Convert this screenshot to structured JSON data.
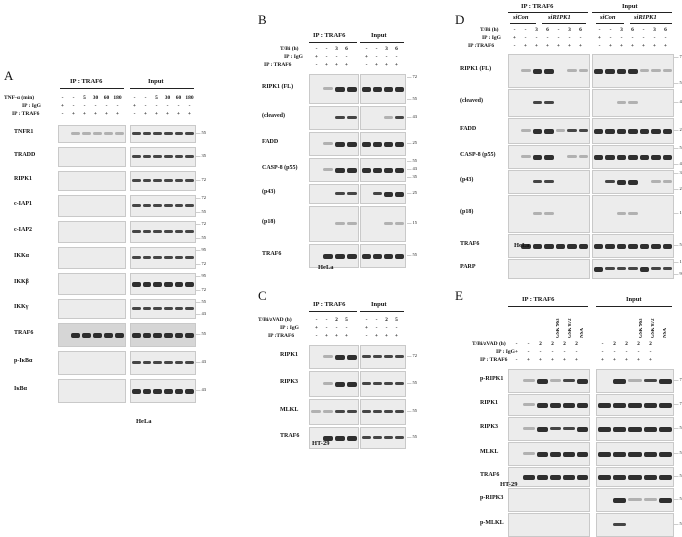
{
  "figure": {
    "panels": {
      "A": {
        "label": "A",
        "ip_title": "IP : TRAF6",
        "input_title": "Input",
        "treat_label": "TNF-α (min)",
        "ip_igg_label": "IP : IgG",
        "ip_traf6_label": "IP : TRAF6",
        "time_values": [
          "-",
          "-",
          "5",
          "30",
          "60",
          "180"
        ],
        "igg_values": [
          "+",
          "-",
          "-",
          "-",
          "-",
          "-"
        ],
        "traf6_values": [
          "-",
          "+",
          "+",
          "+",
          "+",
          "+"
        ],
        "rows": [
          {
            "label": "TNFR1",
            "mw": [
              "55"
            ]
          },
          {
            "label": "TRADD",
            "mw": [
              "35"
            ]
          },
          {
            "label": "RIPK1",
            "mw": [
              "72"
            ]
          },
          {
            "label": "c-IAP1",
            "mw": [
              "72",
              "55"
            ]
          },
          {
            "label": "c-IAP2",
            "mw": [
              "72",
              "55"
            ]
          },
          {
            "label": "IKKα",
            "mw": [
              "95",
              "72"
            ]
          },
          {
            "label": "IKKβ",
            "mw": [
              "95",
              "72"
            ]
          },
          {
            "label": "IKKγ",
            "mw": [
              "55",
              "43"
            ]
          },
          {
            "label": "TRAF6",
            "mw": [
              "55"
            ]
          },
          {
            "label": "p-IκBα",
            "mw": [
              "43"
            ]
          },
          {
            "label": "IκBα",
            "mw": [
              "43"
            ]
          }
        ],
        "cell_line": "HeLa"
      },
      "B": {
        "label": "B",
        "ip_title": "IP : TRAF6",
        "input_title": "Input",
        "treat_label": "T/Bi (h)",
        "ip_igg_label": "IP : IgG",
        "ip_traf6_label": "IP : TRAF6",
        "time_values": [
          "-",
          "-",
          "3",
          "6"
        ],
        "igg_values": [
          "+",
          "-",
          "-",
          "-"
        ],
        "traf6_values": [
          "-",
          "+",
          "+",
          "+"
        ],
        "rows": [
          {
            "label": "RIPK1 (FL)",
            "mw": [
              "72",
              "55"
            ]
          },
          {
            "label": "(cleaved)",
            "mw": [
              "43"
            ]
          },
          {
            "label": "FADD",
            "mw": [
              "25"
            ]
          },
          {
            "label": "CASP-8 (p55)",
            "mw": [
              "55",
              "43",
              "35"
            ]
          },
          {
            "label": "(p43)",
            "mw": [
              "25"
            ]
          },
          {
            "label": "(p18)",
            "mw": [
              "15"
            ]
          },
          {
            "label": "TRAF6",
            "mw": [
              "55"
            ]
          }
        ],
        "cell_line": "HeLa"
      },
      "C": {
        "label": "C",
        "ip_title": "IP : TRAF6",
        "input_title": "Input",
        "treat_label": "T/Bi/zVAD (h)",
        "ip_igg_label": "IP : IgG",
        "ip_traf6_label": "IP :TRAF6",
        "time_values": [
          "-",
          "-",
          "2",
          "5"
        ],
        "igg_values": [
          "+",
          "-",
          "-",
          "-"
        ],
        "traf6_values": [
          "-",
          "+",
          "+",
          "+"
        ],
        "rows": [
          {
            "label": "RIPK1",
            "mw": [
              "72"
            ]
          },
          {
            "label": "RIPK3",
            "mw": [
              "55"
            ]
          },
          {
            "label": "MLKL",
            "mw": [
              "55"
            ]
          },
          {
            "label": "TRAF6",
            "mw": [
              "55"
            ]
          }
        ],
        "cell_line": "HT-29"
      },
      "D": {
        "label": "D",
        "ip_title": "IP : TRAF6",
        "input_title": "Input",
        "sicon": "siCon",
        "siripk1": "siRIPK1",
        "treat_label": "T/Bi (h)",
        "ip_igg_label": "IP : IgG",
        "ip_traf6_label": "IP :TRAF6",
        "time_values": [
          "-",
          "-",
          "3",
          "6",
          "-",
          "3",
          "6"
        ],
        "igg_values": [
          "+",
          "-",
          "-",
          "-",
          "-",
          "-",
          "-"
        ],
        "traf6_values": [
          "-",
          "+",
          "+",
          "+",
          "+",
          "+",
          "+"
        ],
        "rows": [
          {
            "label": "RIPK1 (FL)",
            "mw": [
              "72",
              "55"
            ]
          },
          {
            "label": "(cleaved)",
            "mw": [
              "43"
            ]
          },
          {
            "label": "FADD",
            "mw": [
              "25"
            ]
          },
          {
            "label": "CASP-8 (p55)",
            "mw": [
              "55",
              "43"
            ]
          },
          {
            "label": "(p43)",
            "mw": [
              "35",
              "25"
            ]
          },
          {
            "label": "(p18)",
            "mw": [
              "15"
            ]
          },
          {
            "label": "TRAF6",
            "mw": [
              "55"
            ]
          },
          {
            "label": "PARP",
            "mw": [
              "110",
              "95"
            ]
          }
        ],
        "cell_line": "HeLa"
      },
      "E": {
        "label": "E",
        "ip_title": "IP : TRAF6",
        "input_title": "Input",
        "treat_label": "T/Bi/zVAD (h)",
        "ip_igg_label": "IP : IgG",
        "ip_traf6_label": "IP : TRAF6",
        "inhibitors": [
          "GSK'963",
          "GSK'872",
          "NSA"
        ],
        "time_values": [
          "-",
          "-",
          "2",
          "2",
          "2",
          "2"
        ],
        "igg_values": [
          "+",
          "-",
          "-",
          "-",
          "-",
          "-"
        ],
        "traf6_values": [
          "-",
          "+",
          "+",
          "+",
          "+",
          "+"
        ],
        "rows": [
          {
            "label": "p-RIPK1",
            "mw": [
              "72"
            ]
          },
          {
            "label": "RIPK1",
            "mw": [
              "72"
            ]
          },
          {
            "label": "RIPK3",
            "mw": [
              "55"
            ]
          },
          {
            "label": "MLKL",
            "mw": [
              "55"
            ]
          },
          {
            "label": "TRAF6",
            "mw": [
              "55"
            ]
          },
          {
            "label": "p-RIPK3",
            "mw": [
              "55"
            ]
          },
          {
            "label": "p-MLKL",
            "mw": [
              "55"
            ]
          }
        ],
        "cell_line": "HT-29"
      }
    }
  }
}
